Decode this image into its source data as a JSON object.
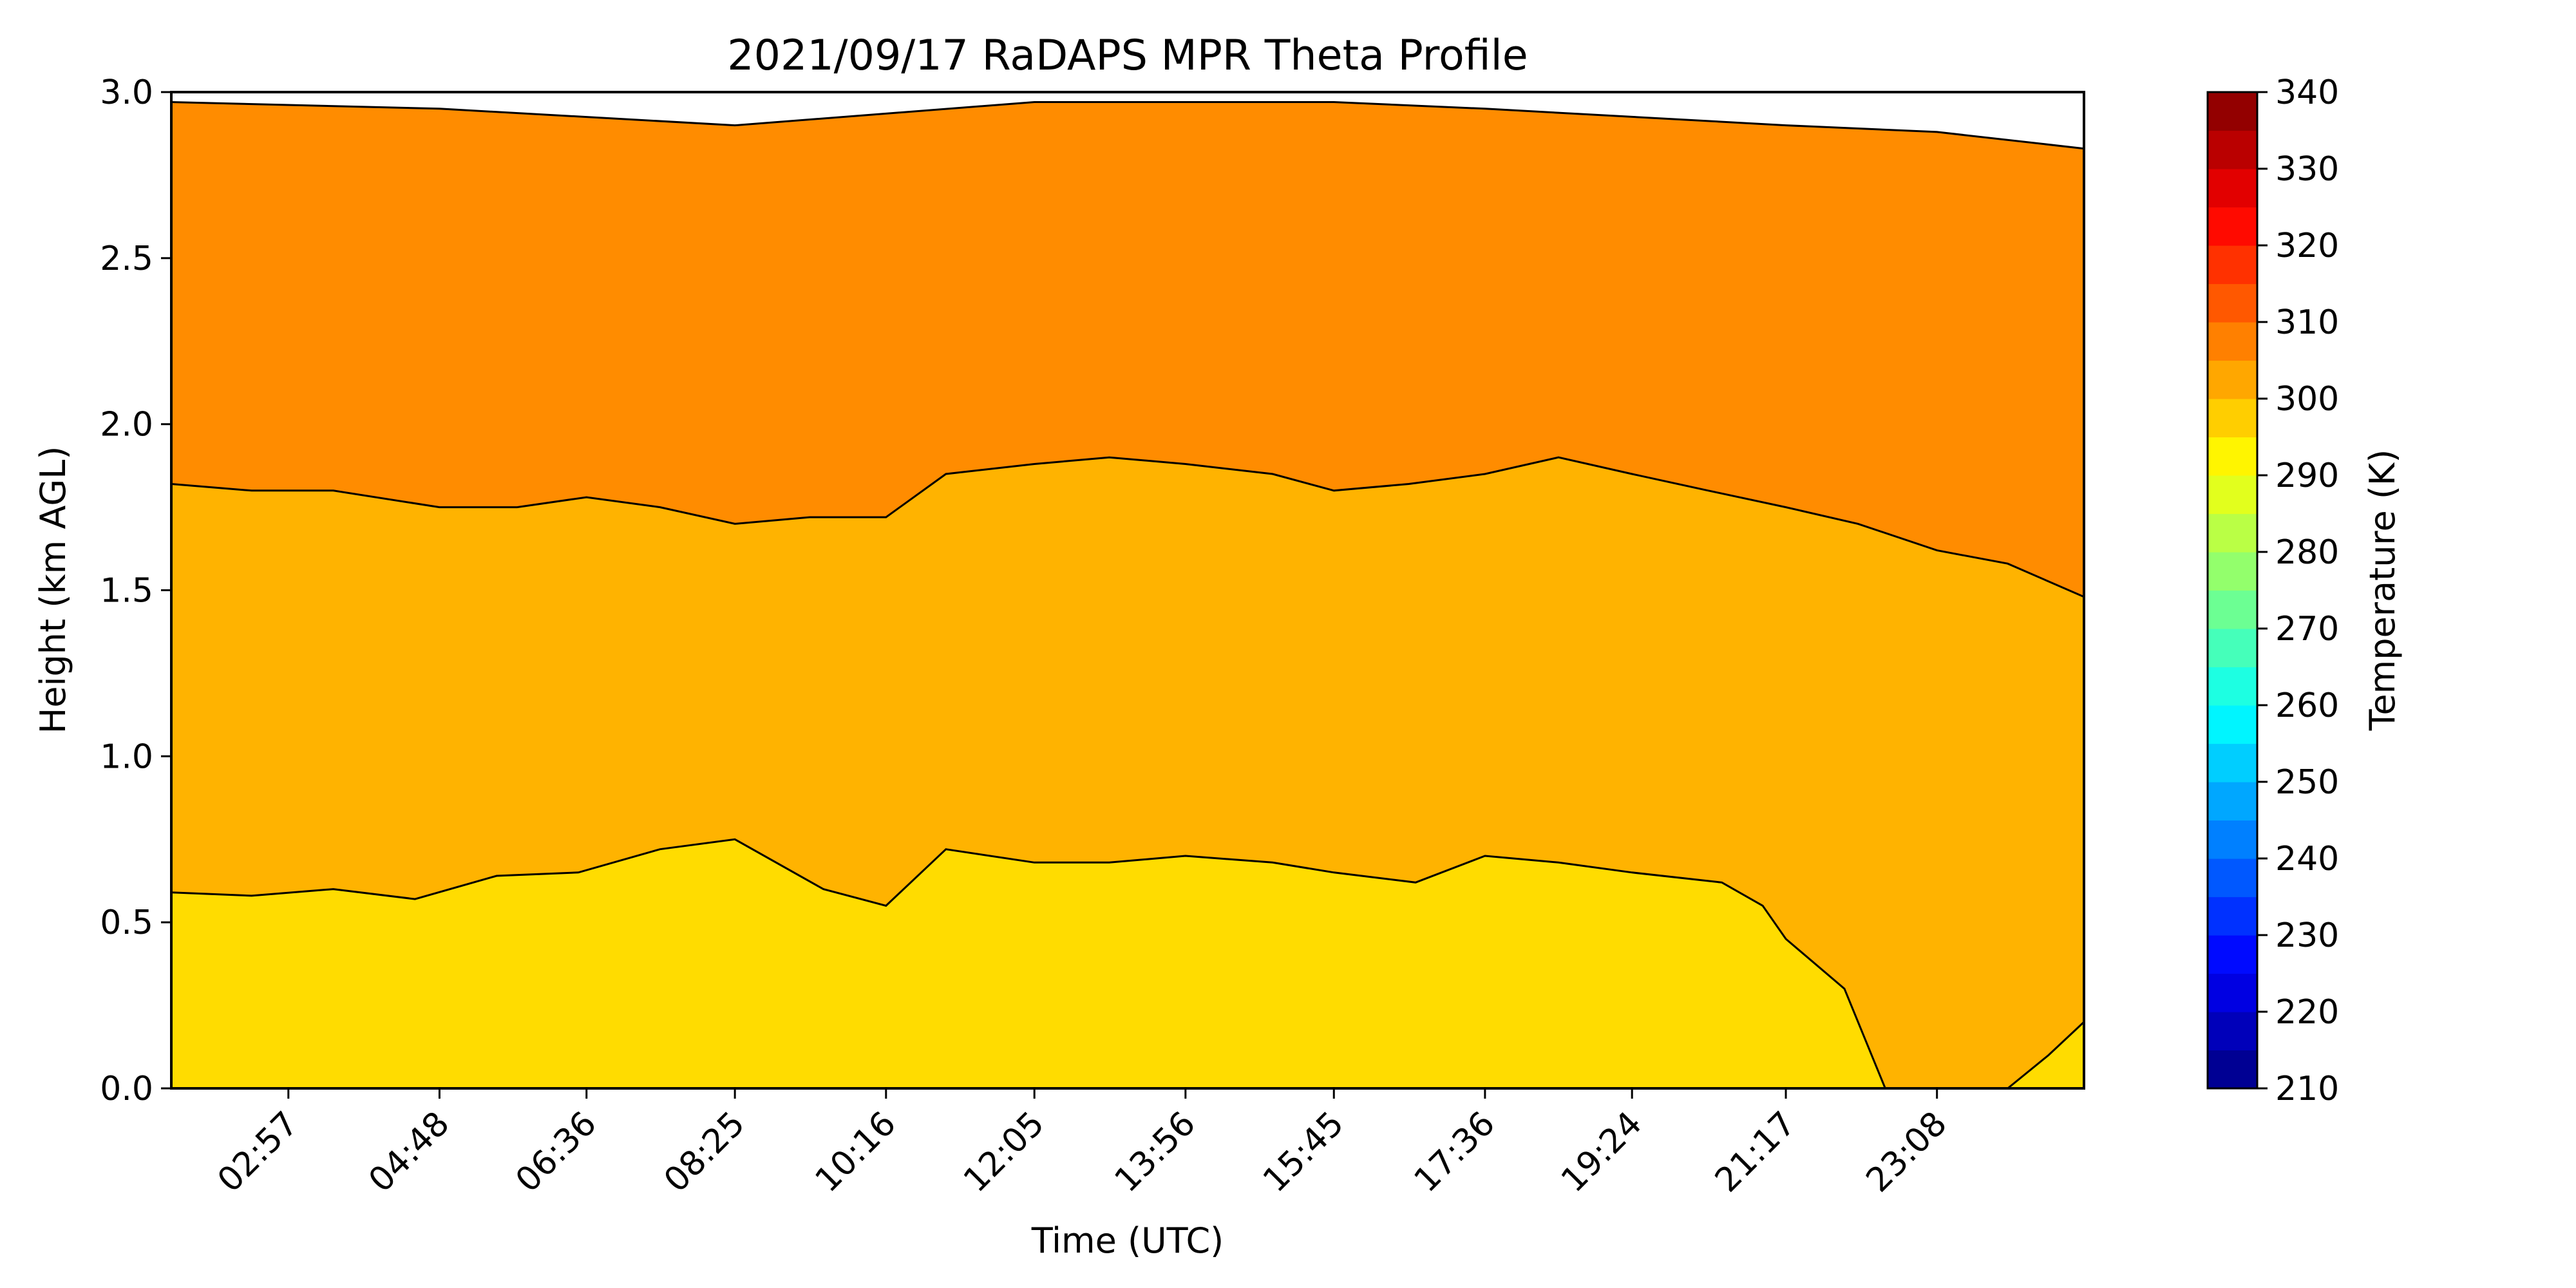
{
  "chart_data": {
    "type": "heatmap",
    "title": "2021/09/17 RaDAPS MPR Theta Profile",
    "xlabel": "Time (UTC)",
    "ylabel": "Height (km AGL)",
    "x_tick_labels": [
      "02:57",
      "04:48",
      "06:36",
      "08:25",
      "10:16",
      "12:05",
      "13:56",
      "15:45",
      "17:36",
      "19:24",
      "21:17",
      "23:08"
    ],
    "x_range": [
      "01:31",
      "24:56"
    ],
    "ylim": [
      0,
      3
    ],
    "y_ticks": [
      0.0,
      0.5,
      1.0,
      1.5,
      2.0,
      2.5,
      3.0
    ],
    "colorbar": {
      "label": "Temperature (K)",
      "colormap": "jet",
      "range": [
        210,
        340
      ],
      "step": 5,
      "ticks": [
        210,
        220,
        230,
        240,
        250,
        260,
        270,
        280,
        290,
        300,
        310,
        320,
        330,
        340
      ]
    },
    "contour_levels": [
      {
        "band": "295-300 K",
        "color": "#ffdc00",
        "upper_height_km": [
          {
            "time": "01:31",
            "height": 0.59
          },
          {
            "time": "02:30",
            "height": 0.58
          },
          {
            "time": "03:30",
            "height": 0.6
          },
          {
            "time": "04:30",
            "height": 0.57
          },
          {
            "time": "05:30",
            "height": 0.64
          },
          {
            "time": "06:30",
            "height": 0.65
          },
          {
            "time": "07:30",
            "height": 0.72
          },
          {
            "time": "08:25",
            "height": 0.75
          },
          {
            "time": "09:30",
            "height": 0.6
          },
          {
            "time": "10:16",
            "height": 0.55
          },
          {
            "time": "11:00",
            "height": 0.72
          },
          {
            "time": "12:05",
            "height": 0.68
          },
          {
            "time": "13:00",
            "height": 0.68
          },
          {
            "time": "13:56",
            "height": 0.7
          },
          {
            "time": "15:00",
            "height": 0.68
          },
          {
            "time": "15:45",
            "height": 0.65
          },
          {
            "time": "16:45",
            "height": 0.62
          },
          {
            "time": "17:36",
            "height": 0.7
          },
          {
            "time": "18:30",
            "height": 0.68
          },
          {
            "time": "19:24",
            "height": 0.65
          },
          {
            "time": "20:30",
            "height": 0.62
          },
          {
            "time": "21:00",
            "height": 0.55
          },
          {
            "time": "21:17",
            "height": 0.45
          },
          {
            "time": "22:00",
            "height": 0.3
          },
          {
            "time": "22:30",
            "height": 0.0
          },
          {
            "time": "24:00",
            "height": 0.0
          },
          {
            "time": "24:30",
            "height": 0.1
          },
          {
            "time": "24:56",
            "height": 0.2
          }
        ]
      },
      {
        "band": "300-305 K",
        "color": "#ffb300",
        "upper_height_km": [
          {
            "time": "01:31",
            "height": 1.82
          },
          {
            "time": "02:30",
            "height": 1.8
          },
          {
            "time": "03:30",
            "height": 1.8
          },
          {
            "time": "04:48",
            "height": 1.75
          },
          {
            "time": "05:45",
            "height": 1.75
          },
          {
            "time": "06:36",
            "height": 1.78
          },
          {
            "time": "07:30",
            "height": 1.75
          },
          {
            "time": "08:25",
            "height": 1.7
          },
          {
            "time": "09:20",
            "height": 1.72
          },
          {
            "time": "10:16",
            "height": 1.72
          },
          {
            "time": "11:00",
            "height": 1.85
          },
          {
            "time": "12:05",
            "height": 1.88
          },
          {
            "time": "13:00",
            "height": 1.9
          },
          {
            "time": "13:56",
            "height": 1.88
          },
          {
            "time": "15:00",
            "height": 1.85
          },
          {
            "time": "15:45",
            "height": 1.8
          },
          {
            "time": "16:40",
            "height": 1.82
          },
          {
            "time": "17:36",
            "height": 1.85
          },
          {
            "time": "18:30",
            "height": 1.9
          },
          {
            "time": "19:24",
            "height": 1.85
          },
          {
            "time": "20:20",
            "height": 1.8
          },
          {
            "time": "21:17",
            "height": 1.75
          },
          {
            "time": "22:10",
            "height": 1.7
          },
          {
            "time": "23:08",
            "height": 1.62
          },
          {
            "time": "24:00",
            "height": 1.58
          },
          {
            "time": "24:56",
            "height": 1.48
          }
        ]
      },
      {
        "band": "305-310 K",
        "color": "#ff8c00",
        "upper_height_km": [
          {
            "time": "01:31",
            "height": 2.97
          },
          {
            "time": "04:48",
            "height": 2.95
          },
          {
            "time": "08:25",
            "height": 2.9
          },
          {
            "time": "12:05",
            "height": 2.97
          },
          {
            "time": "15:45",
            "height": 2.97
          },
          {
            "time": "17:36",
            "height": 2.95
          },
          {
            "time": "21:17",
            "height": 2.9
          },
          {
            "time": "23:08",
            "height": 2.88
          },
          {
            "time": "24:56",
            "height": 2.83
          }
        ]
      }
    ]
  }
}
